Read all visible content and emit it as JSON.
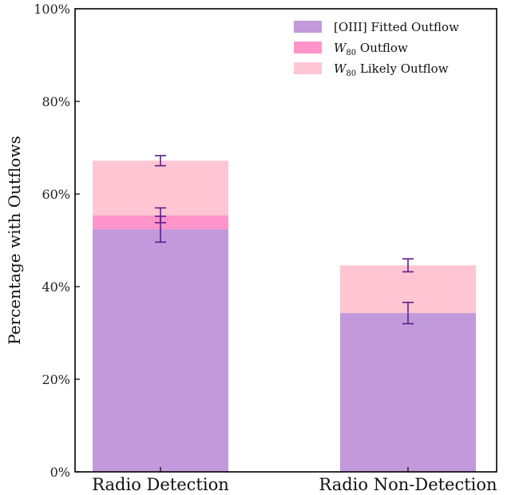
{
  "chart_data": {
    "type": "bar",
    "stacked": true,
    "categories": [
      "Radio Detection",
      "Radio Non-Detection"
    ],
    "ylabel": "Percentage with Outflows",
    "ylim": [
      0,
      100
    ],
    "yticks": [
      0,
      20,
      40,
      60,
      80,
      100
    ],
    "ytick_suffix": "%",
    "grid": false,
    "legend_position": "top-right",
    "series": [
      {
        "name": "[OIII] Fitted Outflow",
        "legend_main": "[OIII] Fitted Outflow",
        "legend_sub": "",
        "legend_rest": "",
        "color": "#c299da",
        "values": [
          52.4,
          34.3
        ],
        "errors": [
          2.8,
          2.3
        ]
      },
      {
        "name": "W80 Outflow",
        "legend_main": "W",
        "legend_sub": "80",
        "legend_rest": " Outflow",
        "color": "#ff94cb",
        "values": [
          3.0,
          0
        ],
        "errors": [
          1.6,
          null
        ]
      },
      {
        "name": "W80 Likely Outflow",
        "legend_main": "W",
        "legend_sub": "80",
        "legend_rest": " Likely Outflow",
        "color": "#ffc5d3",
        "values": [
          11.8,
          10.3
        ],
        "errors": [
          1.1,
          1.4
        ]
      }
    ],
    "error_color": "#5b1f8a"
  }
}
